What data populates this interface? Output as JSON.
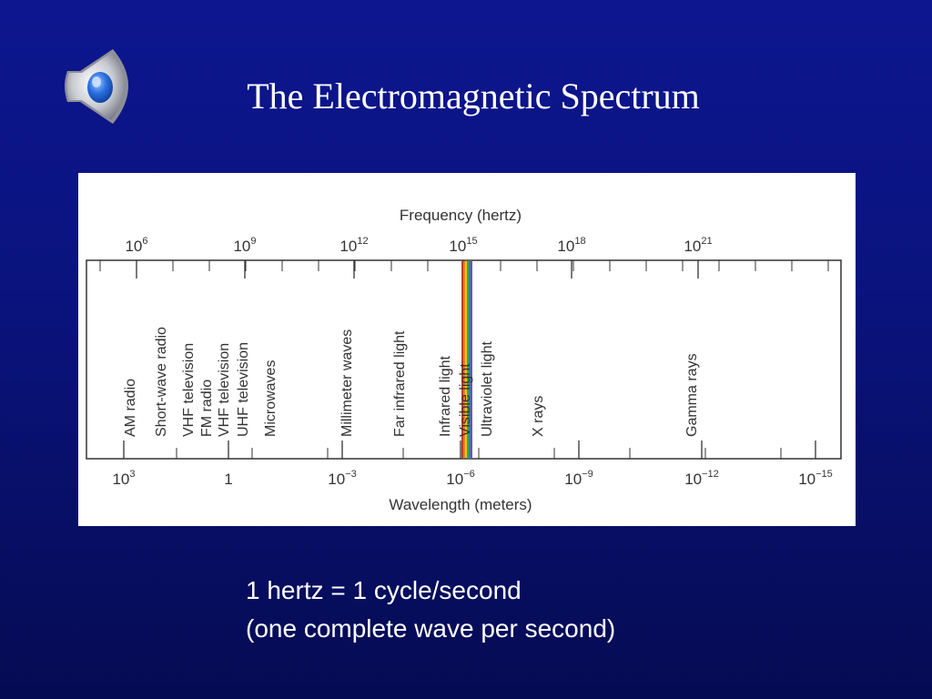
{
  "slide": {
    "title": "The Electromagnetic Spectrum",
    "speaker_icon": "speaker-icon",
    "note_lines": [
      "1 hertz = 1 cycle/second",
      "(one complete wave per second)"
    ]
  },
  "colors": {
    "background": "#0a137c",
    "panel": "#ffffff",
    "ink": "#333333",
    "visible_band": [
      "#c0392b",
      "#e67e22",
      "#f1c40f",
      "#27ae60",
      "#2980b9",
      "#8e44ad"
    ]
  },
  "diagram": {
    "frequency_axis": {
      "title": "Frequency (hertz)",
      "ticks": [
        {
          "base": "10",
          "exp": "6"
        },
        {
          "base": "10",
          "exp": "9"
        },
        {
          "base": "10",
          "exp": "12"
        },
        {
          "base": "10",
          "exp": "15"
        },
        {
          "base": "10",
          "exp": "18"
        },
        {
          "base": "10",
          "exp": "21"
        }
      ]
    },
    "wavelength_axis": {
      "title": "Wavelength (meters)",
      "ticks": [
        {
          "base": "10",
          "exp": "3"
        },
        {
          "base": "1",
          "exp": ""
        },
        {
          "base": "10",
          "exp": "−3"
        },
        {
          "base": "10",
          "exp": "−6"
        },
        {
          "base": "10",
          "exp": "−9"
        },
        {
          "base": "10",
          "exp": "−12"
        },
        {
          "base": "10",
          "exp": "−15"
        }
      ]
    },
    "bands": [
      "AM radio",
      "Short-wave radio",
      "VHF television",
      "FM radio",
      "VHF television",
      "UHF television",
      "Microwaves",
      "Millimeter waves",
      "Far infrared light",
      "Infrared light",
      "Visible light",
      "Ultraviolet light",
      "X rays",
      "Gamma rays"
    ]
  }
}
